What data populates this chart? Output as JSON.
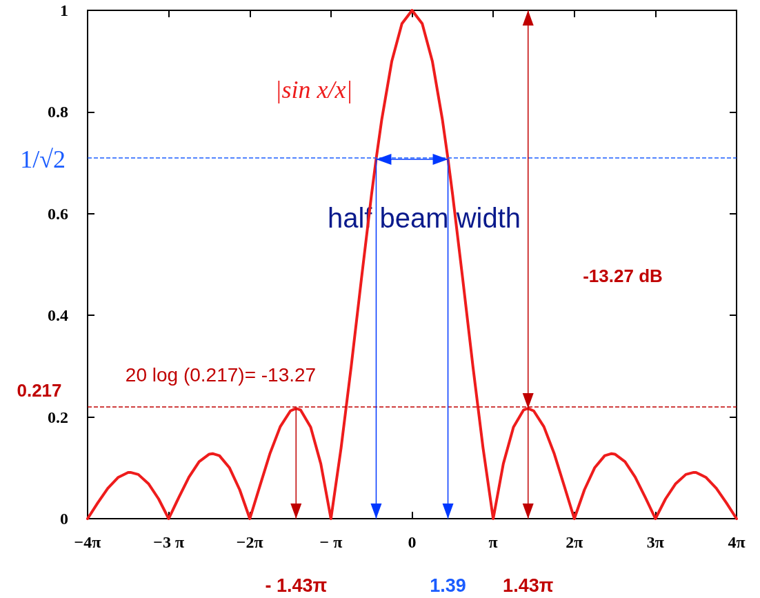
{
  "chart_data": {
    "type": "line",
    "x": [
      -12.566,
      -12.174,
      -11.781,
      -11.388,
      -10.996,
      -10.904,
      -10.603,
      -10.21,
      -9.817,
      -9.425,
      -9.032,
      -8.639,
      -8.247,
      -7.854,
      -7.725,
      -7.461,
      -7.069,
      -6.676,
      -6.283,
      -5.89,
      -5.498,
      -5.105,
      -4.712,
      -4.493,
      -4.32,
      -3.927,
      -3.534,
      -3.142,
      -2.749,
      -2.356,
      -1.963,
      -1.571,
      -1.39,
      -1.178,
      -0.785,
      -0.393,
      0,
      0.393,
      0.785,
      1.178,
      1.39,
      1.571,
      1.963,
      2.356,
      2.749,
      3.142,
      3.534,
      3.927,
      4.32,
      4.493,
      4.712,
      5.105,
      5.498,
      5.89,
      6.283,
      6.676,
      7.069,
      7.461,
      7.725,
      7.854,
      8.247,
      8.639,
      9.032,
      9.425,
      9.817,
      10.21,
      10.603,
      10.904,
      10.996,
      11.388,
      11.781,
      12.174,
      12.566
    ],
    "series": [
      {
        "color": "#ee1c1c",
        "values": [
          0,
          0.031,
          0.06,
          0.081,
          0.091,
          0.091,
          0.087,
          0.069,
          0.039,
          0,
          0.042,
          0.082,
          0.112,
          0.127,
          0.128,
          0.124,
          0.1,
          0.057,
          0,
          0.065,
          0.129,
          0.181,
          0.212,
          0.217,
          0.214,
          0.18,
          0.108,
          0,
          0.139,
          0.3,
          0.471,
          0.637,
          0.708,
          0.784,
          0.9,
          0.974,
          1,
          0.974,
          0.9,
          0.784,
          0.708,
          0.637,
          0.471,
          0.3,
          0.139,
          0,
          0.108,
          0.18,
          0.214,
          0.217,
          0.212,
          0.181,
          0.129,
          0.065,
          0,
          0.057,
          0.1,
          0.124,
          0.128,
          0.127,
          0.112,
          0.082,
          0.042,
          0,
          0.039,
          0.069,
          0.087,
          0.091,
          0.091,
          0.081,
          0.06,
          0.031,
          0
        ]
      }
    ],
    "xlim": [
      -12.566,
      12.566
    ],
    "xticks": [
      {
        "value": -12.566,
        "label": "−4π"
      },
      {
        "value": -9.425,
        "label": "−3 π"
      },
      {
        "value": -6.283,
        "label": "−2π"
      },
      {
        "value": -3.142,
        "label": "− π"
      },
      0,
      {
        "value": 3.142,
        "label": "π"
      },
      {
        "value": 6.283,
        "label": "2π"
      },
      {
        "value": 9.425,
        "label": "3π"
      },
      {
        "value": 12.566,
        "label": "4π"
      }
    ],
    "ylim": [
      0,
      1
    ],
    "yticks": [
      0,
      0.2,
      0.4,
      0.6,
      0.8,
      1
    ],
    "grid": false,
    "marker": "none",
    "line_style": "solid",
    "ref_lines": [
      {
        "axis": "y",
        "value": 0.707,
        "label": "1/√2",
        "color": "#1a5cff",
        "line_style": "dashed"
      },
      {
        "axis": "y",
        "value": 0.217,
        "label": "0.217",
        "color": "#c00000",
        "line_style": "dashed"
      }
    ],
    "annotations": [
      "|sin x/x|",
      "half beam width",
      "-13.27 dB",
      "20 log (0.217)= -13.27",
      "- 1.43π",
      "1.39",
      "1.43π"
    ]
  }
}
